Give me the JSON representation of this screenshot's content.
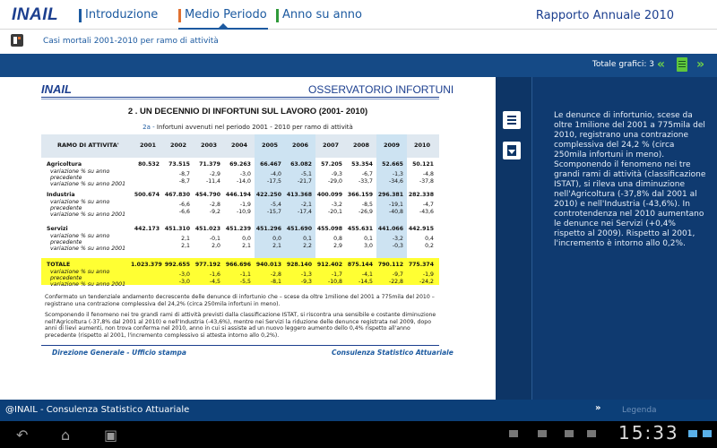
{
  "header": {
    "logo": "INAIL",
    "nav": [
      "Introduzione",
      "Medio Periodo",
      "Anno su anno"
    ],
    "report_title": "Rapporto Annuale 2010"
  },
  "breadcrumb": "Casi mortali 2001-2010 per ramo di attività",
  "toolbar": {
    "totale": "Totale grafici: 3"
  },
  "document": {
    "logo": "INAIL",
    "header": "OSSERVATORIO INFORTUNI",
    "section_title": "2 . UN DECENNIO DI INFORTUNI SUL LAVORO (2001- 2010)",
    "caption_num": "2a -",
    "caption": "Infortuni avvenuti nel periodo 2001 - 2010 per ramo di attività",
    "table": {
      "row_header": "RAMO DI ATTIVITA'",
      "years": [
        "2001",
        "2002",
        "2003",
        "2004",
        "2005",
        "2006",
        "2007",
        "2008",
        "2009",
        "2010"
      ],
      "groups": [
        {
          "name": "Agricoltura",
          "values": [
            "80.532",
            "73.515",
            "71.379",
            "69.263",
            "66.467",
            "63.082",
            "57.205",
            "53.354",
            "52.665",
            "50.121"
          ],
          "sub1_label": "variazione % su anno",
          "sub1b_label": "precedente",
          "sub1": [
            "",
            "-8,7",
            "-2,9",
            "-3,0",
            "-4,0",
            "-5,1",
            "-9,3",
            "-6,7",
            "-1,3",
            "-4,8"
          ],
          "sub2_label": "variazione % su anno 2001",
          "sub2": [
            "",
            "-8,7",
            "-11,4",
            "-14,0",
            "-17,5",
            "-21,7",
            "-29,0",
            "-33,7",
            "-34,6",
            "-37,8"
          ]
        },
        {
          "name": "Industria",
          "values": [
            "500.674",
            "467.830",
            "454.790",
            "446.194",
            "422.250",
            "413.368",
            "400.099",
            "366.159",
            "296.381",
            "282.338"
          ],
          "sub1_label": "variazione % su anno",
          "sub1b_label": "precedente",
          "sub1": [
            "",
            "-6,6",
            "-2,8",
            "-1,9",
            "-5,4",
            "-2,1",
            "-3,2",
            "-8,5",
            "-19,1",
            "-4,7"
          ],
          "sub2_label": "variazione % su anno 2001",
          "sub2": [
            "",
            "-6,6",
            "-9,2",
            "-10,9",
            "-15,7",
            "-17,4",
            "-20,1",
            "-26,9",
            "-40,8",
            "-43,6"
          ]
        },
        {
          "name": "Servizi",
          "values": [
            "442.173",
            "451.310",
            "451.023",
            "451.239",
            "451.296",
            "451.690",
            "455.098",
            "455.631",
            "441.066",
            "442.915"
          ],
          "sub1_label": "variazione % su anno",
          "sub1b_label": "precedente",
          "sub1": [
            "",
            "2,1",
            "-0,1",
            "0,0",
            "0,0",
            "0,1",
            "0,8",
            "0,1",
            "-3,2",
            "0,4"
          ],
          "sub2_label": "variazione % su anno 2001",
          "sub2": [
            "",
            "2,1",
            "2,0",
            "2,1",
            "2,1",
            "2,2",
            "2,9",
            "3,0",
            "-0,3",
            "0,2"
          ]
        },
        {
          "name": "TOTALE",
          "values": [
            "1.023.379",
            "992.655",
            "977.192",
            "966.696",
            "940.013",
            "928.140",
            "912.402",
            "875.144",
            "790.112",
            "775.374"
          ],
          "sub1_label": "variazione % su anno",
          "sub1b_label": "precedente",
          "sub1": [
            "",
            "-3,0",
            "-1,6",
            "-1,1",
            "-2,8",
            "-1,3",
            "-1,7",
            "-4,1",
            "-9,7",
            "-1,9"
          ],
          "sub2_label": "variazione % su anno 2001",
          "sub2": [
            "",
            "-3,0",
            "-4,5",
            "-5,5",
            "-8,1",
            "-9,3",
            "-10,8",
            "-14,5",
            "-22,8",
            "-24,2"
          ]
        }
      ]
    },
    "para1": "Confermato un tendenziale andamento decrescente delle denunce di infortunio che – scese da oltre 1milione del 2001 a 775mila del 2010 – registrano una contrazione complessiva del 24,2% (circa 250mila infortuni in meno).",
    "para2": "Scomponendo il fenomeno nei tre grandi rami di attività previsti dalla classificazione ISTAT, si riscontra una sensibile e costante diminuzione nell'Agricoltura (-37,8% dal 2001 al 2010) e nell'Industria (-43,6%), mentre nei Servizi la riduzione delle denunce registrata nel 2009, dopo anni di lievi aumenti, non trova conferma nel 2010, anno in cui si assiste ad un nuovo leggero aumento dello 0,4% rispetto all'anno precedente (rispetto al 2001, l'incremento complessivo si attesta intorno allo 0,2%).",
    "footer_left": "Direzione Generale - Ufficio stampa",
    "footer_right": "Consulenza Statistico Attuariale"
  },
  "description": "Le denunce di infortunio, scese da oltre 1milione del 2001 a 775mila del 2010, registrano una contrazione complessiva del 24,2 % (circa 250mila infortuni in meno). Scomponendo il fenomeno nei tre grandi rami di attività (classificazione ISTAT), si rileva una diminuzione nell'Agricoltura (-37,8% dal 2001 al 2010) e nell'Industria (-43,6%). In controtendenza nel 2010 aumentano le denunce nei Servizi (+0,4% rispetto al 2009). Rispetto al 2001, l'incremento è intorno allo 0,2%.",
  "footer": {
    "text": "@INAIL - Consulenza Statistico Attuariale",
    "legenda": "Legenda",
    "chevrons": "»"
  },
  "system": {
    "clock": "15:33"
  },
  "colors": {
    "brand_blue": "#1c3f8f",
    "strip_blue": "#154a86",
    "accent_green": "#5fc63c",
    "total_yellow": "#ffff33"
  }
}
